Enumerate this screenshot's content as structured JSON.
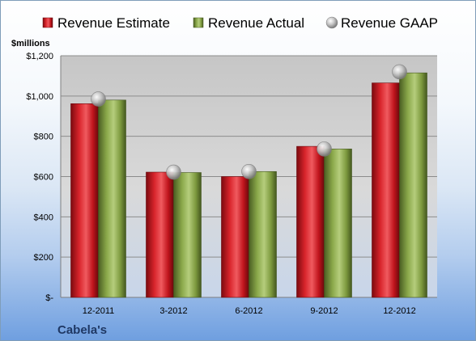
{
  "chart_data": {
    "type": "bar",
    "unit_label": "$millions",
    "company": "Cabela's",
    "categories": [
      "12-2011",
      "3-2012",
      "6-2012",
      "9-2012",
      "12-2012"
    ],
    "series": [
      {
        "name": "Revenue Estimate",
        "kind": "bar",
        "color": "#c0141c",
        "values": [
          962,
          622,
          600,
          750,
          1065
        ]
      },
      {
        "name": "Revenue Actual",
        "kind": "bar",
        "color": "#76923c",
        "values": [
          980,
          620,
          625,
          737,
          1115
        ]
      },
      {
        "name": "Revenue GAAP",
        "kind": "marker",
        "color": "#a6a6a6",
        "values": [
          985,
          622,
          625,
          737,
          1120
        ]
      }
    ],
    "ylim": [
      0,
      1200
    ],
    "yticks": [
      0,
      200,
      400,
      600,
      800,
      1000,
      1200
    ],
    "ytick_labels": [
      "$-",
      "$200",
      "$400",
      "$600",
      "$800",
      "$1,000",
      "$1,200"
    ],
    "grid": true,
    "legend_position": "top"
  }
}
